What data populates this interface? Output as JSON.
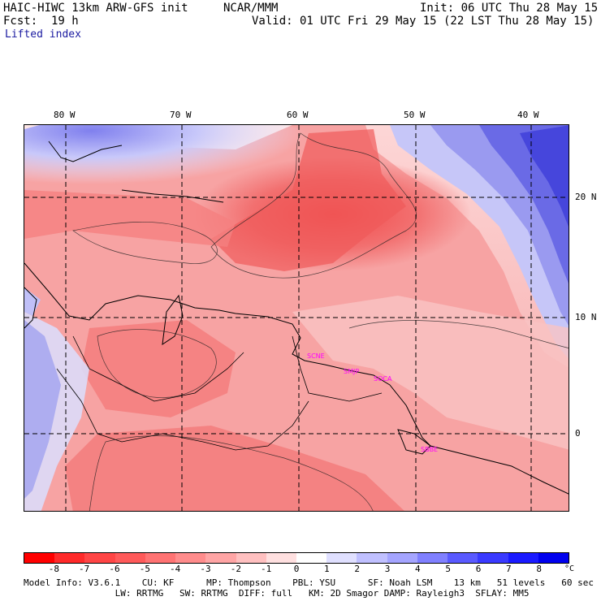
{
  "header": {
    "model_title": "HAIC-HIWC 13km ARW-GFS init",
    "org": "NCAR/MMM",
    "init": "Init: 06 UTC Thu 28 May 15",
    "fcst_label": "Fcst:",
    "fcst_value": "19 h",
    "valid": "Valid: 01 UTC Fri 29 May 15 (22 LST Thu 28 May 15)",
    "field": "Lifted index"
  },
  "map": {
    "lon_labels": [
      "80 W",
      "70 W",
      "60 W",
      "50 W",
      "40 W"
    ],
    "lat_labels": [
      "20 N",
      "10 N",
      "0"
    ],
    "stations": [
      "SCNE",
      "SMJP",
      "SOCA",
      "SBBE"
    ],
    "colors": {
      "deep_red": "#e03030",
      "red": "#f06060",
      "salmon": "#f8a0a0",
      "light": "#fcd8d8",
      "blue": "#6a6ae0",
      "deep_blue": "#3030d0"
    }
  },
  "colorbar": {
    "labels": [
      "-8",
      "-7",
      "-6",
      "-5",
      "-4",
      "-3",
      "-2",
      "-1",
      "0",
      "1",
      "2",
      "3",
      "4",
      "5",
      "6",
      "7",
      "8"
    ],
    "unit": "°C",
    "colors": [
      "#ff0000",
      "#ff2a2a",
      "#ff4545",
      "#ff5a5a",
      "#ff7373",
      "#ff8c8c",
      "#ffa5a5",
      "#ffc0c0",
      "#ffe0e0",
      "#ffffff",
      "#e0e0ff",
      "#c0c0ff",
      "#a5a5ff",
      "#8080ff",
      "#5a5aff",
      "#3a3aff",
      "#1a1aff",
      "#0000ee"
    ]
  },
  "footer": {
    "line1": "Model Info: V3.6.1    CU: KF      MP: Thompson    PBL: YSU      SF: Noah LSM    13 km   51 levels   60 sec",
    "line2": "                 LW: RRTMG   SW: RRTMG  DIFF: full   KM: 2D Smagor DAMP: Rayleigh3  SFLAY: MM5"
  }
}
